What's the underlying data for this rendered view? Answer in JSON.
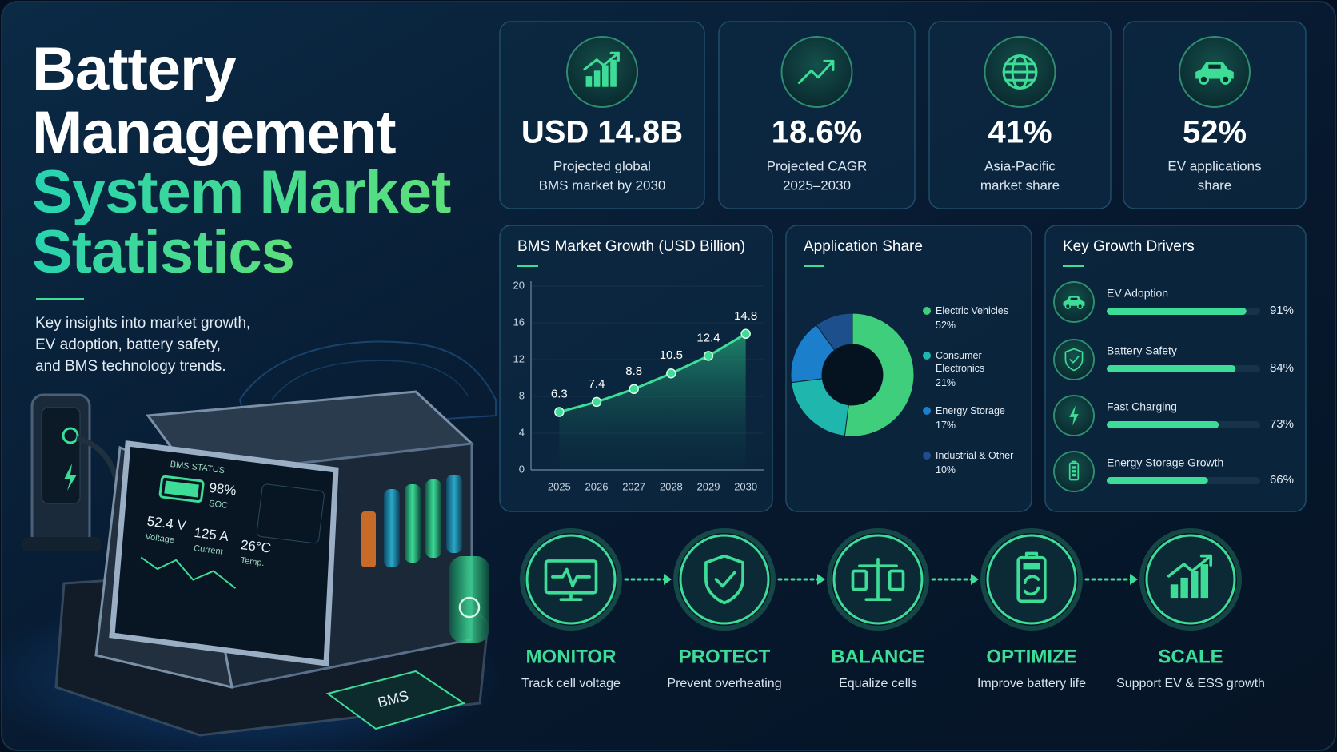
{
  "header": {
    "title_lines": [
      "Battery",
      "Management",
      "System Market",
      "Statistics"
    ],
    "subtitle_lines": [
      "Key insights into market growth,",
      "EV adoption, battery safety,",
      "and BMS technology trends."
    ]
  },
  "illustration": {
    "screen_title": "BMS STATUS",
    "soc": "98%",
    "soc_label": "SOC",
    "voltage": "52.4 V",
    "voltage_label": "Voltage",
    "current": "125 A",
    "current_label": "Current",
    "temperature": "26°C",
    "temperature_label": "Temp.",
    "chip": "BMS"
  },
  "stats": [
    {
      "value": "USD 14.8B",
      "label_lines": [
        "Projected global",
        "BMS market by 2030"
      ]
    },
    {
      "value": "18.6%",
      "label_lines": [
        "Projected CAGR",
        "2025–2030"
      ]
    },
    {
      "value": "41%",
      "label_lines": [
        "Asia-Pacific",
        "market share"
      ]
    },
    {
      "value": "52%",
      "label_lines": [
        "EV applications",
        "share"
      ]
    }
  ],
  "chart_data": [
    {
      "type": "line",
      "title": "BMS Market Growth (USD Billion)",
      "categories": [
        "2025",
        "2026",
        "2027",
        "2028",
        "2029",
        "2030"
      ],
      "values": [
        6.3,
        7.4,
        8.8,
        10.5,
        12.4,
        14.8
      ],
      "color": "#3ddc97",
      "area": true,
      "ylim": [
        0,
        20
      ],
      "yticks": [
        0,
        4,
        8,
        12,
        16,
        20
      ],
      "grid": true
    },
    {
      "type": "pie",
      "title": "Application Share",
      "donut": true,
      "categories": [
        "Electric Vehicles",
        "Consumer Electronics",
        "Energy Storage",
        "Industrial & Other"
      ],
      "values": [
        52,
        21,
        17,
        10
      ],
      "value_labels": [
        "52%",
        "21%",
        "17%",
        "10%"
      ],
      "colors": [
        "#3fcf7c",
        "#1fb6ae",
        "#1b7fcc",
        "#1c4f8c"
      ]
    },
    {
      "type": "bar",
      "orientation": "horizontal",
      "title": "Key Growth Drivers",
      "categories": [
        "EV Adoption",
        "Battery Safety",
        "Fast Charging",
        "Energy Storage Growth"
      ],
      "values": [
        91,
        84,
        73,
        66
      ],
      "value_labels": [
        "91%",
        "84%",
        "73%",
        "66%"
      ],
      "color": "#3ddc97",
      "xlim": [
        0,
        100
      ]
    }
  ],
  "process": [
    {
      "title": "MONITOR",
      "description": "Track cell voltage"
    },
    {
      "title": "PROTECT",
      "description": "Prevent overheating"
    },
    {
      "title": "BALANCE",
      "description": "Equalize cells"
    },
    {
      "title": "OPTIMIZE",
      "description": "Improve battery life"
    },
    {
      "title": "SCALE",
      "description": "Support EV & ESS growth"
    }
  ]
}
